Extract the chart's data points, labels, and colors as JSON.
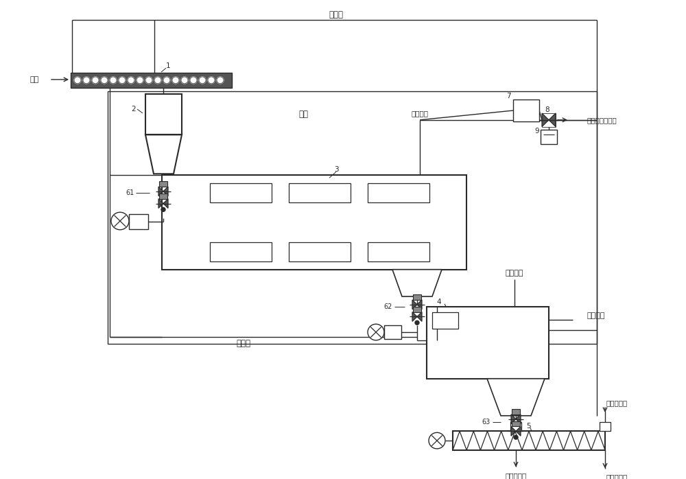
{
  "bg_color": "#ffffff",
  "line_color": "#2a2a2a",
  "labels": {
    "fly_ash": "飛灰",
    "thermal_oil_top": "導熱油",
    "tail_gas": "尾氣",
    "seal_gas_1": "密封氣體",
    "seal_gas_2": "密封氣體",
    "separated_tail_gas": "分離束后的尾氣",
    "thermal_oil_bottom": "導熱油",
    "cooling_water_in": "冷卻水進水",
    "cooling_water_out": "冷卻水出水",
    "processed_fly_ash": "處理后飛灰",
    "num1": "1",
    "num2": "2",
    "num3": "3",
    "num4": "4",
    "num5": "5",
    "num61": "61",
    "num62": "62",
    "num63": "63",
    "num7": "7",
    "num8": "8",
    "num9": "9"
  },
  "figsize": [
    10.0,
    6.98
  ],
  "dpi": 100
}
